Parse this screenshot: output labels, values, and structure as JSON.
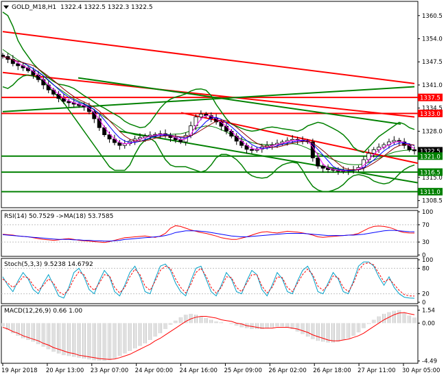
{
  "chart_data": [
    {
      "type": "candlestick",
      "title": "GOLD_M18,H1",
      "ohlc": {
        "open": 1322.4,
        "high": 1322.5,
        "low": 1322.3,
        "close": 1322.5
      },
      "ohlc_text": "1322.4 1322.5 1322.3 1322.5",
      "ylim": [
        1306.5,
        1364.5
      ],
      "y_ticks": [
        "1360.5",
        "1354.0",
        "1347.5",
        "1341.0",
        "1334.5",
        "1328.0",
        "1321.5",
        "1315.0",
        "1308.5"
      ],
      "y_tick_values": [
        1360.5,
        1354.0,
        1347.5,
        1341.0,
        1334.5,
        1328.0,
        1321.5,
        1315.0,
        1308.5
      ],
      "x_ticks": [
        "19 Apr 2018",
        "20 Apr 13:00",
        "23 Apr 07:00",
        "24 Apr 00:00",
        "24 Apr 16:00",
        "25 Apr 09:00",
        "26 Apr 02:00",
        "26 Apr 18:00",
        "27 Apr 11:00",
        "30 Apr 05:00"
      ],
      "price_labels": [
        {
          "text": "1337.5",
          "value": 1337.5,
          "color": "#ff0000"
        },
        {
          "text": "1333.0",
          "value": 1333.0,
          "color": "#ff0000"
        },
        {
          "text": "1322.5",
          "value": 1322.5,
          "color": "#000000"
        },
        {
          "text": "1321.0",
          "value": 1321.0,
          "color": "#008000"
        },
        {
          "text": "1316.5",
          "value": 1316.5,
          "color": "#008000"
        },
        {
          "text": "1311.0",
          "value": 1311.0,
          "color": "#008000"
        }
      ],
      "horizontal_levels": [
        {
          "value": 1337.5,
          "color": "#ff0000"
        },
        {
          "value": 1333.0,
          "color": "#ff0000"
        },
        {
          "value": 1321.0,
          "color": "#008000"
        },
        {
          "value": 1316.5,
          "color": "#008000"
        },
        {
          "value": 1311.0,
          "color": "#008000"
        }
      ],
      "trend_lines": [
        {
          "color": "#ff0000",
          "from": [
            0,
            1356.0
          ],
          "to": [
            600,
            1341.4
          ]
        },
        {
          "color": "#ff0000",
          "from": [
            0,
            1344.5
          ],
          "to": [
            600,
            1332.0
          ]
        },
        {
          "color": "#ff0000",
          "from": [
            260,
            1333.2
          ],
          "to": [
            605,
            1319.0
          ]
        },
        {
          "color": "#008000",
          "from": [
            0,
            1333.5
          ],
          "to": [
            600,
            1340.5
          ]
        },
        {
          "color": "#008000",
          "from": [
            110,
            1343.0
          ],
          "to": [
            580,
            1330.0
          ]
        },
        {
          "color": "#008000",
          "from": [
            170,
            1328.0
          ],
          "to": [
            605,
            1313.5
          ]
        }
      ],
      "close_series": [
        1349.0,
        1348.2,
        1347.0,
        1346.4,
        1345.8,
        1345.0,
        1343.8,
        1342.5,
        1341.0,
        1339.6,
        1338.4,
        1337.2,
        1336.4,
        1336.0,
        1335.6,
        1335.2,
        1334.8,
        1333.5,
        1331.5,
        1329.0,
        1327.0,
        1325.8,
        1324.8,
        1324.0,
        1324.5,
        1325.2,
        1325.8,
        1326.2,
        1326.6,
        1326.9,
        1327.1,
        1327.3,
        1326.8,
        1326.2,
        1325.6,
        1325.0,
        1326.8,
        1329.5,
        1332.0,
        1332.8,
        1332.4,
        1331.6,
        1330.6,
        1329.4,
        1328.0,
        1326.6,
        1325.2,
        1324.0,
        1322.9,
        1322.6,
        1323.0,
        1323.6,
        1324.0,
        1324.2,
        1324.6,
        1325.0,
        1325.4,
        1325.7,
        1325.5,
        1325.2,
        1325.0,
        1320.5,
        1318.2,
        1317.6,
        1317.2,
        1317.0,
        1316.8,
        1316.9,
        1317.0,
        1317.2,
        1317.8,
        1320.0,
        1321.8,
        1322.8,
        1323.5,
        1324.2,
        1325.0,
        1325.4,
        1325.0,
        1324.0,
        1322.8,
        1322.5
      ],
      "bands": {
        "upper": [
          1361.5,
          1360.5,
          1357.5,
          1353.5,
          1351.0,
          1349.0,
          1347.0,
          1345.5,
          1344.2,
          1343.0,
          1342.0,
          1341.2,
          1341.0,
          1340.6,
          1340.0,
          1339.0,
          1338.0,
          1337.2,
          1336.2,
          1335.2,
          1334.5,
          1333.6,
          1332.8,
          1332.0,
          1330.8,
          1330.0,
          1329.5,
          1329.0,
          1329.2,
          1330.5,
          1332.5,
          1334.5,
          1336.0,
          1337.0,
          1337.6,
          1338.0,
          1338.5,
          1339.3,
          1339.8,
          1339.9,
          1339.5,
          1338.0,
          1335.5,
          1333.5,
          1331.5,
          1330.0,
          1329.4,
          1328.8,
          1328.3,
          1328.0,
          1328.2,
          1328.6,
          1329.0,
          1329.2,
          1329.0,
          1328.7,
          1328.5,
          1328.3,
          1328.0,
          1328.5,
          1329.5,
          1330.0,
          1330.5,
          1330.2,
          1329.5,
          1328.8,
          1328.0,
          1327.0,
          1325.5,
          1323.5,
          1322.5,
          1322.0,
          1323.5,
          1325.0,
          1326.5,
          1327.5,
          1328.5,
          1329.5,
          1330.5,
          1330.0,
          1329.0,
          1328.5
        ],
        "middle": [
          1351.0,
          1350.0,
          1349.0,
          1348.0,
          1347.2,
          1346.4,
          1345.6,
          1344.6,
          1343.5,
          1342.2,
          1341.0,
          1340.0,
          1339.0,
          1338.0,
          1337.1,
          1336.4,
          1335.8,
          1335.0,
          1334.0,
          1333.0,
          1332.0,
          1331.0,
          1330.0,
          1329.0,
          1328.0,
          1327.4,
          1327.0,
          1326.8,
          1326.6,
          1326.6,
          1326.7,
          1326.8,
          1327.0,
          1327.1,
          1327.2,
          1327.3,
          1327.6,
          1328.2,
          1328.8,
          1329.2,
          1329.5,
          1329.4,
          1329.0,
          1328.4,
          1327.8,
          1327.0,
          1326.4,
          1325.8,
          1325.3,
          1324.8,
          1324.5,
          1324.3,
          1324.2,
          1324.2,
          1324.3,
          1324.4,
          1324.4,
          1324.5,
          1324.3,
          1323.8,
          1323.2,
          1322.5,
          1321.8,
          1321.2,
          1320.6,
          1320.0,
          1319.5,
          1319.0,
          1318.7,
          1318.6,
          1318.6,
          1318.8,
          1319.2,
          1319.8,
          1320.4,
          1321.0,
          1321.6,
          1322.1,
          1322.4,
          1322.6,
          1322.7,
          1322.8
        ],
        "lower": [
          1340.5,
          1340.0,
          1341.0,
          1342.5,
          1343.5,
          1343.8,
          1343.5,
          1343.0,
          1342.0,
          1340.5,
          1339.0,
          1337.5,
          1336.0,
          1334.0,
          1332.0,
          1330.0,
          1328.0,
          1326.0,
          1324.0,
          1322.0,
          1320.0,
          1318.0,
          1317.0,
          1317.0,
          1317.0,
          1318.5,
          1321.5,
          1324.0,
          1325.5,
          1326.0,
          1325.0,
          1322.5,
          1320.0,
          1318.5,
          1318.0,
          1318.0,
          1318.0,
          1317.5,
          1317.0,
          1316.5,
          1317.0,
          1318.5,
          1320.5,
          1321.5,
          1321.5,
          1321.0,
          1320.0,
          1318.5,
          1316.5,
          1315.5,
          1315.0,
          1314.8,
          1315.0,
          1316.0,
          1317.5,
          1318.5,
          1319.0,
          1319.3,
          1319.0,
          1317.0,
          1314.5,
          1312.5,
          1311.5,
          1311.0,
          1311.0,
          1311.4,
          1312.0,
          1313.0,
          1314.5,
          1315.5,
          1315.8,
          1315.5,
          1315.0,
          1314.0,
          1313.5,
          1313.2,
          1313.5,
          1314.5,
          1316.0,
          1317.2,
          1318.0,
          1318.5
        ]
      }
    },
    {
      "type": "line",
      "title": "RSI(14) 50.7529 ->MA(18) 53.7585",
      "ylim": [
        0,
        100
      ],
      "y_ticks": [
        "100",
        "70",
        "30",
        "0"
      ],
      "y_tick_values": [
        100,
        70,
        30,
        0
      ],
      "series": [
        {
          "color": "#ff0000",
          "values": [
            48,
            47,
            46,
            44,
            43,
            42,
            40,
            38,
            36,
            35,
            34,
            35,
            37,
            38,
            36,
            34,
            33,
            32,
            31,
            30,
            29,
            31,
            34,
            37,
            40,
            41,
            42,
            43,
            44,
            42,
            41,
            44,
            50,
            62,
            68,
            66,
            62,
            58,
            55,
            52,
            50,
            47,
            44,
            40,
            38,
            36,
            36,
            39,
            42,
            46,
            50,
            53,
            54,
            52,
            51,
            53,
            55,
            54,
            53,
            51,
            49,
            46,
            42,
            41,
            42,
            43,
            44,
            45,
            46,
            47,
            50,
            56,
            62,
            66,
            67,
            66,
            64,
            60,
            55,
            52,
            51,
            50.75
          ]
        },
        {
          "color": "#0000ff",
          "values": [
            47,
            46,
            45,
            44,
            43,
            42,
            41,
            40,
            39,
            38,
            37,
            36,
            36,
            36,
            35,
            35,
            34,
            34,
            33,
            33,
            32,
            32,
            33,
            34,
            36,
            37,
            38,
            39,
            40,
            41,
            42,
            43,
            45,
            48,
            52,
            54,
            56,
            56,
            56,
            55,
            54,
            52,
            50,
            48,
            46,
            44,
            43,
            42,
            42,
            43,
            44,
            45,
            46,
            47,
            48,
            49,
            50,
            50,
            50,
            50,
            49,
            48,
            47,
            46,
            45,
            45,
            45,
            45,
            46,
            46,
            47,
            48,
            50,
            52,
            54,
            56,
            57,
            57,
            56,
            55,
            54,
            53.76
          ]
        }
      ]
    },
    {
      "type": "line",
      "title": "Stoch(5,3,3) 9.5238 14.6792",
      "ylim": [
        0,
        100
      ],
      "y_ticks": [
        "100",
        "80",
        "20",
        "0"
      ],
      "y_tick_values": [
        100,
        80,
        20,
        0
      ],
      "series": [
        {
          "color": "#00a0c8",
          "values": [
            60,
            40,
            25,
            50,
            70,
            55,
            30,
            20,
            45,
            65,
            40,
            15,
            10,
            35,
            70,
            80,
            60,
            30,
            20,
            50,
            75,
            60,
            25,
            15,
            40,
            70,
            85,
            60,
            25,
            20,
            55,
            85,
            90,
            75,
            45,
            25,
            15,
            50,
            80,
            85,
            55,
            25,
            15,
            40,
            70,
            55,
            25,
            20,
            50,
            75,
            65,
            30,
            15,
            40,
            70,
            55,
            25,
            20,
            50,
            75,
            85,
            60,
            25,
            20,
            45,
            70,
            55,
            25,
            20,
            50,
            85,
            95,
            95,
            85,
            60,
            40,
            60,
            35,
            20,
            12,
            10,
            9.52
          ]
        },
        {
          "color": "#ff0000",
          "values": [
            55,
            45,
            35,
            45,
            60,
            58,
            40,
            28,
            40,
            55,
            45,
            25,
            18,
            30,
            55,
            72,
            65,
            40,
            28,
            45,
            65,
            62,
            35,
            22,
            35,
            60,
            78,
            65,
            38,
            28,
            50,
            75,
            85,
            80,
            55,
            35,
            22,
            42,
            70,
            80,
            62,
            35,
            22,
            35,
            60,
            58,
            35,
            25,
            45,
            65,
            65,
            38,
            22,
            35,
            60,
            58,
            35,
            25,
            45,
            65,
            78,
            65,
            38,
            28,
            40,
            62,
            58,
            35,
            25,
            45,
            75,
            90,
            93,
            88,
            68,
            48,
            55,
            42,
            28,
            18,
            15,
            14.68
          ]
        }
      ]
    },
    {
      "type": "bar",
      "title": "MACD(12,26,9) 0.66 1.00",
      "ylim": [
        -4.6,
        1.9
      ],
      "y_ticks": [
        "1.54",
        "0.00",
        "-4.49"
      ],
      "y_tick_values": [
        1.54,
        0.0,
        -4.49
      ],
      "histogram": [
        -0.4,
        -0.8,
        -1.2,
        -1.5,
        -1.8,
        -2.0,
        -2.2,
        -2.5,
        -2.8,
        -3.1,
        -3.4,
        -3.6,
        -3.8,
        -3.9,
        -4.0,
        -4.1,
        -4.2,
        -4.3,
        -4.4,
        -4.45,
        -4.49,
        -4.4,
        -4.2,
        -3.9,
        -3.6,
        -3.3,
        -3.0,
        -2.7,
        -2.4,
        -2.0,
        -1.6,
        -1.2,
        -0.7,
        -0.2,
        0.3,
        0.7,
        1.0,
        1.1,
        1.0,
        0.8,
        0.6,
        0.4,
        0.2,
        0.1,
        0.0,
        -0.1,
        -0.3,
        -0.5,
        -0.6,
        -0.7,
        -0.7,
        -0.7,
        -0.6,
        -0.5,
        -0.4,
        -0.4,
        -0.5,
        -0.7,
        -1.0,
        -1.3,
        -1.6,
        -1.9,
        -2.1,
        -2.2,
        -2.3,
        -2.3,
        -2.2,
        -2.0,
        -1.8,
        -1.5,
        -1.1,
        -0.6,
        -0.1,
        0.4,
        0.8,
        1.1,
        1.3,
        1.45,
        1.54,
        1.2,
        0.9,
        0.66
      ],
      "signal": [
        -0.5,
        -0.7,
        -1.0,
        -1.2,
        -1.5,
        -1.7,
        -1.9,
        -2.1,
        -2.4,
        -2.6,
        -2.9,
        -3.1,
        -3.3,
        -3.5,
        -3.6,
        -3.8,
        -3.9,
        -4.0,
        -4.1,
        -4.2,
        -4.25,
        -4.3,
        -4.25,
        -4.1,
        -3.9,
        -3.7,
        -3.4,
        -3.1,
        -2.8,
        -2.5,
        -2.1,
        -1.8,
        -1.4,
        -1.0,
        -0.6,
        -0.2,
        0.2,
        0.5,
        0.7,
        0.8,
        0.8,
        0.7,
        0.6,
        0.4,
        0.3,
        0.2,
        0.0,
        -0.1,
        -0.3,
        -0.4,
        -0.5,
        -0.6,
        -0.6,
        -0.6,
        -0.5,
        -0.5,
        -0.5,
        -0.6,
        -0.7,
        -0.9,
        -1.1,
        -1.4,
        -1.6,
        -1.8,
        -2.0,
        -2.1,
        -2.1,
        -2.0,
        -1.9,
        -1.7,
        -1.5,
        -1.2,
        -0.8,
        -0.4,
        0.0,
        0.4,
        0.7,
        1.0,
        1.2,
        1.25,
        1.1,
        1.0
      ]
    }
  ]
}
